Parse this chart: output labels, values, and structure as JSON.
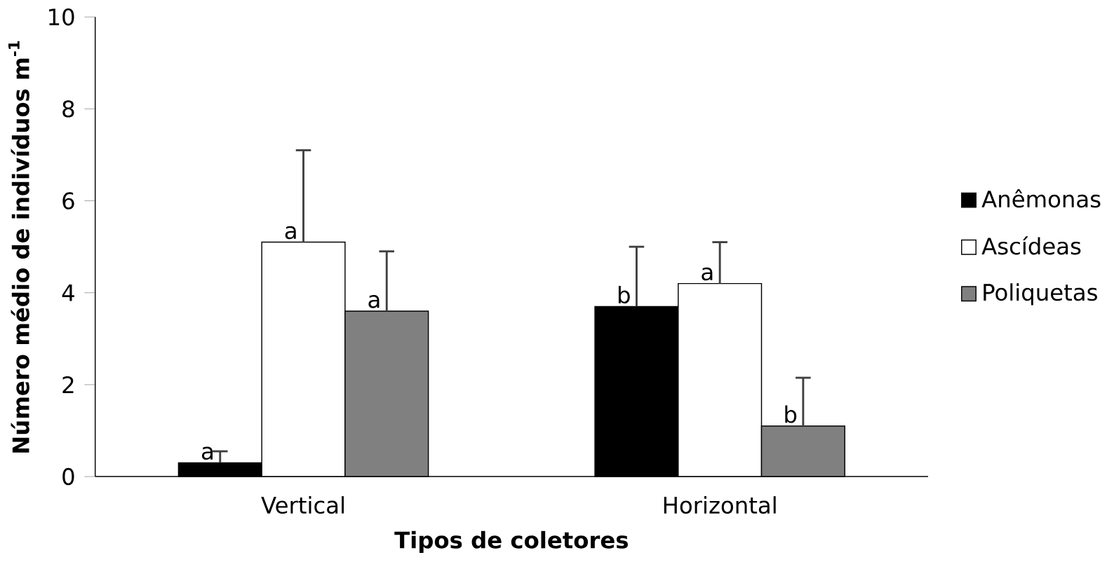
{
  "chart_data": {
    "type": "bar",
    "xlabel": "Tipos de coletores",
    "ylabel": "Número médio de indivíduos m$^{-1}$",
    "categories": [
      "Vertical",
      "Horizontal"
    ],
    "series": [
      {
        "name": "Anêmonas",
        "color": "#000000",
        "values": [
          0.3,
          3.7
        ],
        "errors": [
          [
            0.3,
            0.55
          ],
          [
            3.7,
            5.0
          ]
        ]
      },
      {
        "name": "Ascídeas",
        "color": "#ffffff",
        "values": [
          5.1,
          4.2
        ],
        "errors": [
          [
            5.1,
            7.1
          ],
          [
            4.2,
            5.1
          ]
        ]
      },
      {
        "name": "Poliquetas",
        "color": "#808080",
        "values": [
          3.6,
          1.1
        ],
        "errors": [
          [
            3.6,
            4.9
          ],
          [
            1.1,
            2.15
          ]
        ]
      }
    ],
    "annotations": [
      "a",
      "a",
      "a",
      "b",
      "a",
      "b"
    ],
    "ylim": [
      0,
      10
    ],
    "yticks": [
      0,
      2,
      4,
      6,
      8,
      10
    ],
    "grid": false,
    "legend": "right"
  }
}
